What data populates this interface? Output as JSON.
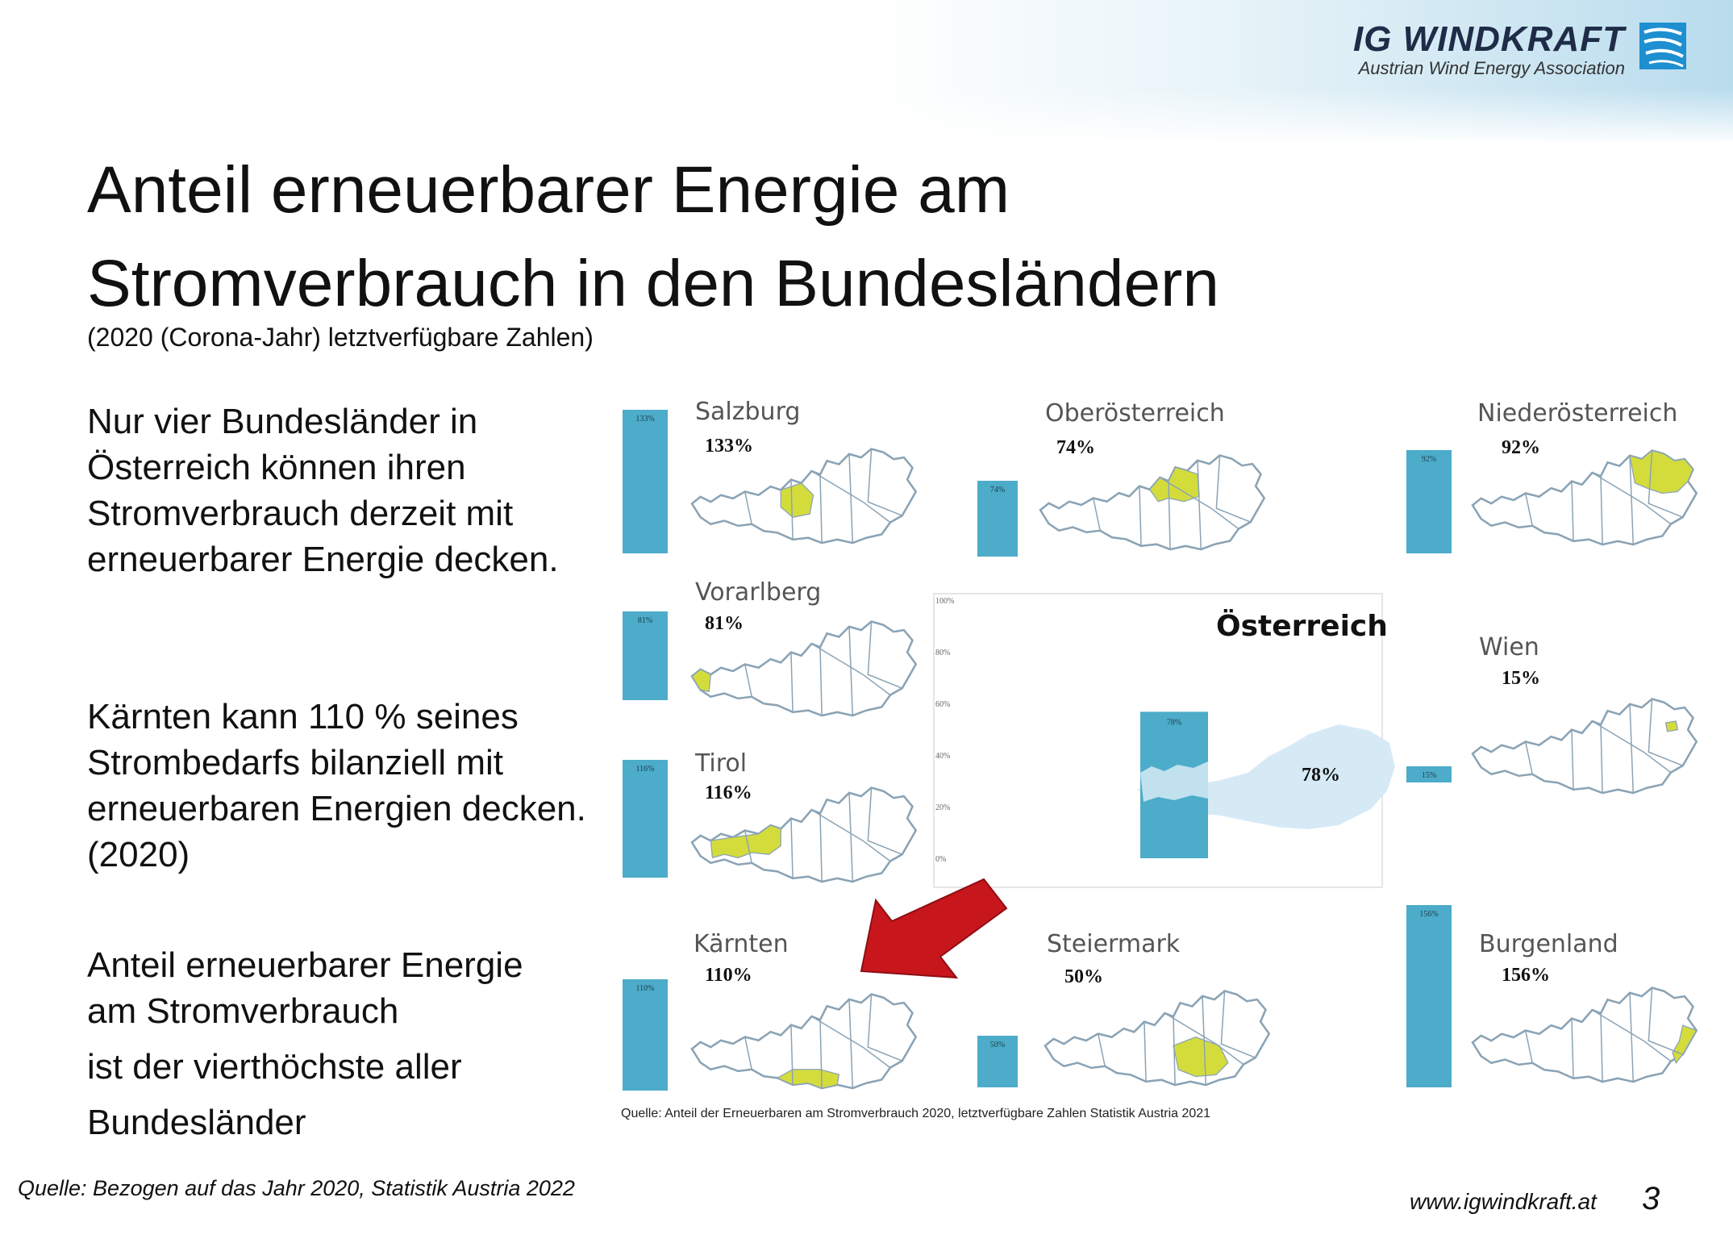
{
  "header": {
    "logo_name": "IG WINDKRAFT",
    "logo_sub": "Austrian Wind Energy Association"
  },
  "title_line1": "Anteil erneuerbarer Energie am",
  "title_line2": "Stromverbrauch in den Bundesländern",
  "subtitle": "(2020 (Corona-Jahr) letztverfügbare Zahlen)",
  "body": {
    "p1": "Nur vier Bundesländer in Österreich können ihren Stromverbrauch derzeit mit erneuerbarer Energie decken.",
    "p2": "Kärnten kann 110 % seines Strombedarfs bilanziell mit erneuerbaren Energien decken. (2020)",
    "p3_line1": "Anteil erneuerbarer Energie",
    "p3_line2": "am Stromverbrauch",
    "p3_line3": "ist der vierthöchste aller",
    "p3_line4": "Bundesländer"
  },
  "source_left": "Quelle: Bezogen auf das Jahr 2020, Statistik Austria 2022",
  "source_chart": "Quelle: Anteil der Erneuerbaren am Stromverbrauch 2020, letztverfügbare Zahlen Statistik Austria 2021",
  "footer": {
    "url": "www.igwindkraft.at",
    "page": "3"
  },
  "colors": {
    "bar": "#4cacc9",
    "highlight": "#d4dc3c",
    "map_outline": "#8aa3b5",
    "austria_fill": "#d6eaf6",
    "arrow": "#c8161d"
  },
  "icons": {
    "logo": "wind-logo-icon",
    "arrow": "red-arrow-icon"
  },
  "chart_data": {
    "type": "bar",
    "categories": [
      "Salzburg",
      "Vorarlberg",
      "Tirol",
      "Kärnten",
      "Oberösterreich",
      "Steiermark",
      "Niederösterreich",
      "Wien",
      "Burgenland",
      "Österreich"
    ],
    "values": [
      133,
      81,
      116,
      110,
      74,
      50,
      92,
      15,
      156,
      78
    ],
    "value_labels": [
      "133%",
      "81%",
      "116%",
      "110%",
      "74%",
      "50%",
      "92%",
      "15%",
      "156%",
      "78%"
    ],
    "bar_labels": [
      "133%",
      "81%",
      "116%",
      "110%",
      "74%",
      "50%",
      "92%",
      "15%",
      "156%",
      "78%"
    ],
    "austria_axis_ticks": [
      "100%",
      "80%",
      "60%",
      "40%",
      "20%",
      "0%"
    ],
    "ylim": [
      0,
      100
    ],
    "title": "",
    "xlabel": "",
    "ylabel": "",
    "grid": false
  }
}
